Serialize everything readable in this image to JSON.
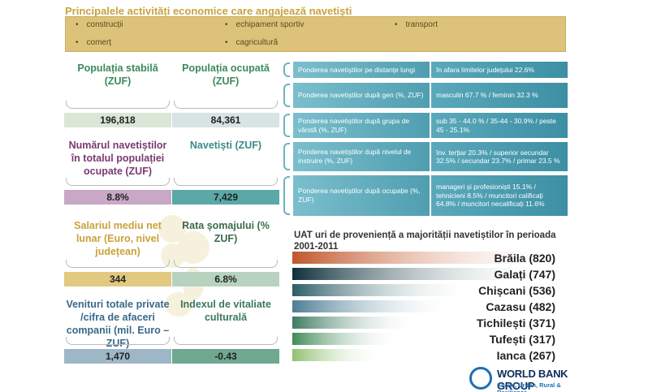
{
  "header": {
    "title": "Principalele activități economice care angajează navetiști",
    "activities": [
      "construcții",
      "echipament sportiv",
      "transport",
      "comerț",
      "cagricultură"
    ]
  },
  "metrics": [
    {
      "label": "Populația stabilă (ZUF)",
      "value": "196,818",
      "label_color": "#3a8a5a",
      "box_color": "#dbe7d6"
    },
    {
      "label": "Populația ocupată (ZUF)",
      "value": "84,361",
      "label_color": "#3a8a5a",
      "box_color": "#d6e4e3"
    },
    {
      "label": "Numărul navetiștilor în totalul populației ocupate (ZUF)",
      "value": "8.8%",
      "label_color": "#7a3a70",
      "box_color": "#c9a8c7"
    },
    {
      "label": "Navetiști (ZUF)",
      "value": "7,429",
      "label_color": "#3d8a8a",
      "box_color": "#5aa8a8"
    },
    {
      "label": "Salariul mediu net lunar (Euro, nivel județean)",
      "value": "344",
      "label_color": "#c9a23a",
      "box_color": "#e2c97f"
    },
    {
      "label": "Rata șomajului (% ZUF)",
      "value": "6.8%",
      "label_color": "#3a6a4a",
      "box_color": "#b7d3bf"
    },
    {
      "label": "Venituri totale private /cifra de afaceri companii (mil. Euro – ZUF)",
      "value": "1,470",
      "label_color": "#3a6a8a",
      "box_color": "#9eb7c7"
    },
    {
      "label": "Indexul de vitaliate culturală",
      "value": "-0.43",
      "label_color": "#3a7a5a",
      "box_color": "#6fa88f"
    }
  ],
  "commuter_info": [
    {
      "label": "Ponderea navetiștilor pe distanțe lungi",
      "value": "în afara limitelor județului 22.6%"
    },
    {
      "label": "Ponderea navetiștilor după gen (%, ZUF)",
      "value": "masculin 67.7 % / feminin 32.3 %"
    },
    {
      "label": "Ponderea navetiștilor după grupa de vârstă   (%, ZUF)",
      "value": "sub 35 - 44.0 % / 35-44 - 30.9% / peste 45 - 25.1%"
    },
    {
      "label": "Ponderea navetiștilor după nivelul de instruire  (%, ZUF)",
      "value": "înv. terțiar 20.3% / superior secundar 32.5% / secundar 23.7% / primar 23.5 %"
    },
    {
      "label": "Ponderea navetiștilor după ocupație (%, ZUF)",
      "value": "manageri și profesioniști 15.1% / tehnicieni 8.5% / muncitori calificați 64.8% / muncitori necalificați 11.6%"
    }
  ],
  "chart_data": {
    "type": "bar",
    "orientation": "horizontal",
    "title": "UAT uri de proveniență a majorității navetiștilor în perioada 2001-2011",
    "categories": [
      "Brăila",
      "Galați",
      "Chișcani",
      "Cazasu",
      "Tichilești",
      "Tufești",
      "Ianca"
    ],
    "values": [
      820,
      747,
      536,
      482,
      371,
      317,
      267
    ],
    "data_labels": [
      "Brăila (820)",
      "Galați (747)",
      "Chișcani (536)",
      "Cazasu (482)",
      "Tichilești (371)",
      "Tufești (317)",
      "Ianca (267)"
    ],
    "colors": [
      "#c0562a",
      "#0e2f3a",
      "#2d5e66",
      "#4d7d95",
      "#3f7a62",
      "#3f8a55",
      "#8fc070"
    ],
    "xlim": [
      0,
      820
    ]
  },
  "footer": {
    "brand": "WORLD BANK GROUP",
    "subtitle": "Social, Urban, Rural & Resilience"
  }
}
